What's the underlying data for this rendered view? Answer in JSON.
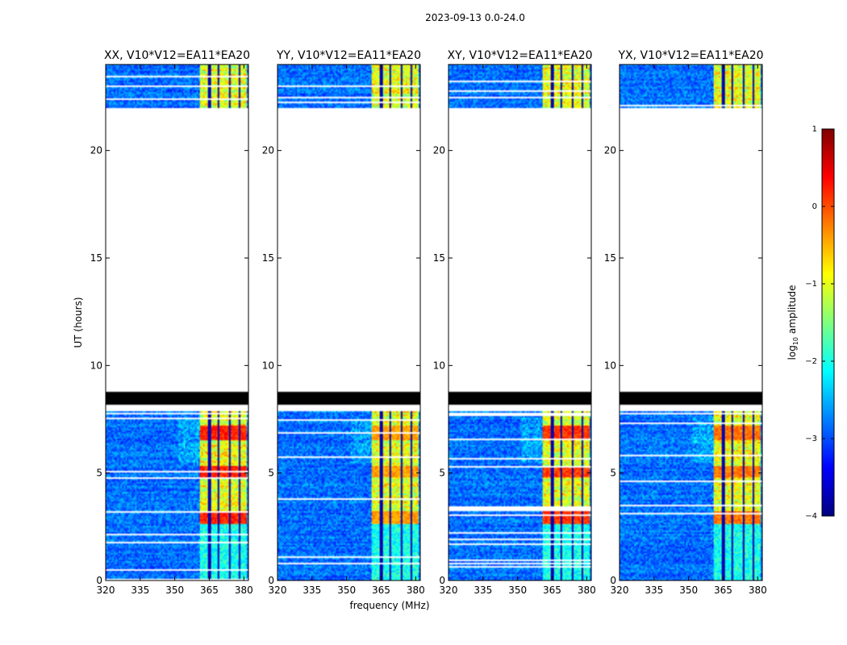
{
  "figure": {
    "suptitle": "2023-09-13 0.0-24.0"
  },
  "chart_data": {
    "type": "heatmap",
    "title": "2023-09-13 0.0-24.0",
    "xlabel": "frequency (MHz)",
    "ylabel": "UT (hours)",
    "xlim": [
      320,
      382
    ],
    "ylim": [
      0,
      24
    ],
    "xticks": [
      "320",
      "335",
      "350",
      "365",
      "380"
    ],
    "yticks": [
      "0",
      "5",
      "10",
      "15",
      "20"
    ],
    "panels": [
      {
        "title": "XX, V10*V12=EA11*EA20",
        "polarization": "XX",
        "strong_level": 0.6
      },
      {
        "title": "YY, V10*V12=EA11*EA20",
        "polarization": "YY",
        "strong_level": 0.3
      },
      {
        "title": "XY, V10*V12=EA11*EA20",
        "polarization": "XY",
        "strong_level": 0.55
      },
      {
        "title": "YX, V10*V12=EA11*EA20",
        "polarization": "YX",
        "strong_level": 0.4
      }
    ],
    "data_bands": {
      "lower_hours": [
        0,
        7.9
      ],
      "upper_hours": [
        22.0,
        24.0
      ],
      "flagged_black_hours": [
        8.2,
        8.8
      ],
      "gap_hours": [
        8.8,
        22.0
      ],
      "bright_channel_mhz": [
        361,
        381
      ],
      "channel_gaps_mhz": [
        365,
        369,
        374,
        378
      ]
    },
    "colorbar": {
      "label": "log₁₀ amplitude",
      "label_main": "log",
      "label_sub": "10",
      "label_rest": " amplitude",
      "vmin": -4,
      "vmax": 1,
      "ticks": [
        "1",
        "0",
        "−1",
        "−2",
        "−3",
        "−4"
      ],
      "colormap": "jet"
    },
    "colors": {
      "black": "#000000",
      "axis": "#000000"
    }
  }
}
